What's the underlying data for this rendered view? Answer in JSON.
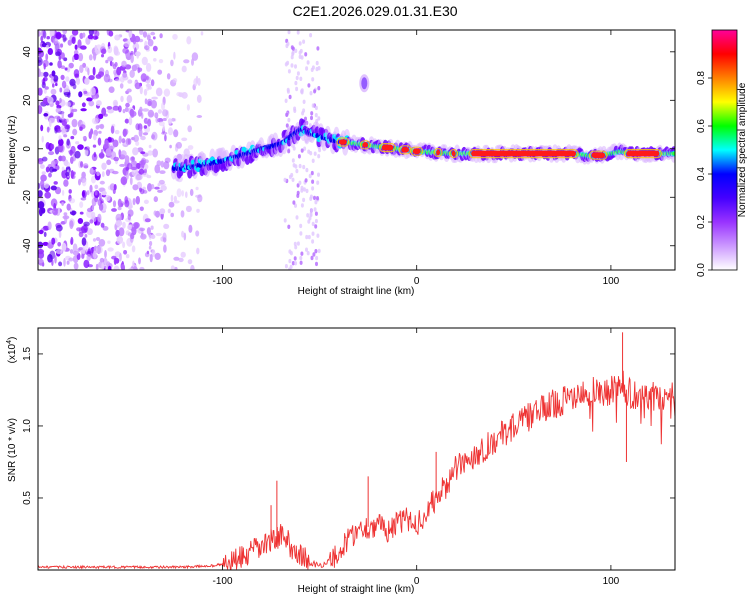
{
  "title": "C2E1.2026.029.01.31.E30",
  "chart_data": [
    {
      "type": "heatmap",
      "name": "spectrogram",
      "xlabel": "Height of straight line (km)",
      "ylabel": "Frequency (Hz)",
      "xlim": [
        -195,
        133
      ],
      "ylim": [
        -50,
        49
      ],
      "x_ticks": [
        -100,
        0,
        100
      ],
      "x_tick_labels": [
        "-100",
        "0",
        "100"
      ],
      "y_ticks": [
        -40,
        -20,
        0,
        20,
        40
      ],
      "y_tick_labels": [
        "-40",
        "-20",
        "0",
        "20",
        "40"
      ],
      "colorbar": {
        "label": "Normalized spectral amplitude",
        "range": [
          0,
          1
        ],
        "ticks": [
          0.0,
          0.2,
          0.4,
          0.6,
          0.8
        ],
        "tick_labels": [
          "0.0",
          "0.2",
          "0.4",
          "0.6",
          "0.8"
        ],
        "colors": [
          "#ffffff",
          "#cc99ff",
          "#9933ff",
          "#4400ff",
          "#0000ff",
          "#00ffff",
          "#00ff00",
          "#ffff00",
          "#ff8000",
          "#ff0000",
          "#ff0099"
        ]
      },
      "ridge": {
        "description": "spectral line track",
        "x": [
          -120,
          -100,
          -80,
          -70,
          -60,
          -50,
          -40,
          -30,
          -20,
          -10,
          0,
          20,
          40,
          60,
          80,
          90,
          100,
          105,
          110,
          133
        ],
        "y": [
          -8,
          -5,
          0,
          2,
          8,
          5,
          3,
          2,
          1,
          0,
          -1,
          -2,
          -2,
          -2,
          -2,
          -3,
          -2,
          -1,
          -2,
          -2
        ]
      },
      "noise_region_x": [
        -195,
        -105
      ],
      "noise_band_x": [
        -68,
        -50
      ]
    },
    {
      "type": "line",
      "name": "snr",
      "xlabel": "Height of straight line (km)",
      "ylabel": "SNR (10 * v/v)",
      "multiplier_label": "(x10",
      "multiplier_exponent": "4",
      "multiplier_close": ")",
      "xlim": [
        -195,
        133
      ],
      "ylim": [
        0,
        1.68
      ],
      "x_ticks": [
        -100,
        0,
        100
      ],
      "x_tick_labels": [
        "-100",
        "0",
        "100"
      ],
      "y_ticks": [
        0.5,
        1.0,
        1.5
      ],
      "y_tick_labels": [
        "0.5",
        "1.0",
        "1.5"
      ],
      "color": "#ee3333",
      "series": [
        {
          "name": "SNR",
          "x": [
            -195,
            -120,
            -105,
            -95,
            -90,
            -85,
            -80,
            -75,
            -72,
            -68,
            -64,
            -60,
            -55,
            -50,
            -45,
            -40,
            -35,
            -30,
            -25,
            -20,
            -15,
            -10,
            -5,
            0,
            5,
            10,
            15,
            20,
            30,
            40,
            50,
            60,
            70,
            80,
            90,
            100,
            105,
            110,
            120,
            133
          ],
          "y": [
            0.02,
            0.02,
            0.03,
            0.05,
            0.08,
            0.12,
            0.16,
            0.2,
            0.24,
            0.22,
            0.16,
            0.1,
            0.05,
            0.03,
            0.06,
            0.12,
            0.22,
            0.28,
            0.3,
            0.31,
            0.28,
            0.32,
            0.35,
            0.32,
            0.4,
            0.5,
            0.58,
            0.7,
            0.8,
            0.9,
            1.0,
            1.08,
            1.15,
            1.2,
            1.24,
            1.24,
            1.3,
            1.22,
            1.2,
            1.22
          ]
        }
      ],
      "spikes": [
        {
          "x": -72,
          "y": 0.62
        },
        {
          "x": -75,
          "y": 0.45
        },
        {
          "x": -25,
          "y": 0.65
        },
        {
          "x": 10,
          "y": 0.82
        },
        {
          "x": 106,
          "y": 1.65
        },
        {
          "x": 108,
          "y": 0.75
        }
      ]
    }
  ]
}
